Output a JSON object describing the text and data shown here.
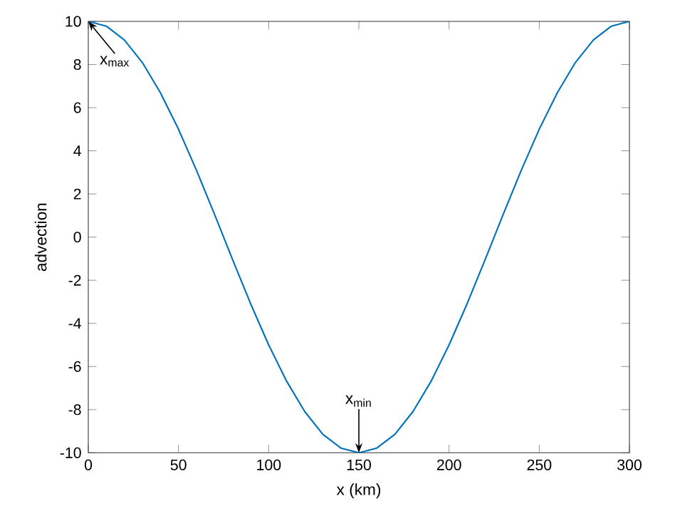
{
  "chart_data": {
    "type": "line",
    "xlabel": "x (km)",
    "ylabel": "advection",
    "x": [
      0,
      10,
      20,
      30,
      40,
      50,
      60,
      70,
      80,
      90,
      100,
      110,
      120,
      130,
      140,
      150,
      160,
      170,
      180,
      190,
      200,
      210,
      220,
      230,
      240,
      250,
      260,
      270,
      280,
      290,
      300
    ],
    "series": [
      {
        "color": "#0072bd",
        "values": [
          10,
          9.78,
          9.14,
          8.09,
          6.69,
          5,
          3.09,
          1.05,
          -1.05,
          -3.09,
          -5,
          -6.69,
          -8.09,
          -9.14,
          -9.78,
          -10,
          -9.78,
          -9.14,
          -8.09,
          -6.69,
          -5,
          -3.09,
          -1.05,
          1.05,
          3.09,
          5,
          6.69,
          8.09,
          9.14,
          9.78,
          10
        ]
      }
    ],
    "xlim": [
      0,
      300
    ],
    "ylim": [
      -10,
      10
    ],
    "xticks": [
      0,
      50,
      100,
      150,
      200,
      250,
      300
    ],
    "yticks": [
      -10,
      -8,
      -6,
      -4,
      -2,
      0,
      2,
      4,
      6,
      8,
      10
    ],
    "marker": "none",
    "line_style": "solid",
    "annotations": [
      {
        "text": "x$_{max}$",
        "x": 0,
        "y": 10
      },
      {
        "text": "x$_{min}$",
        "x": 150,
        "y": -10
      }
    ]
  }
}
